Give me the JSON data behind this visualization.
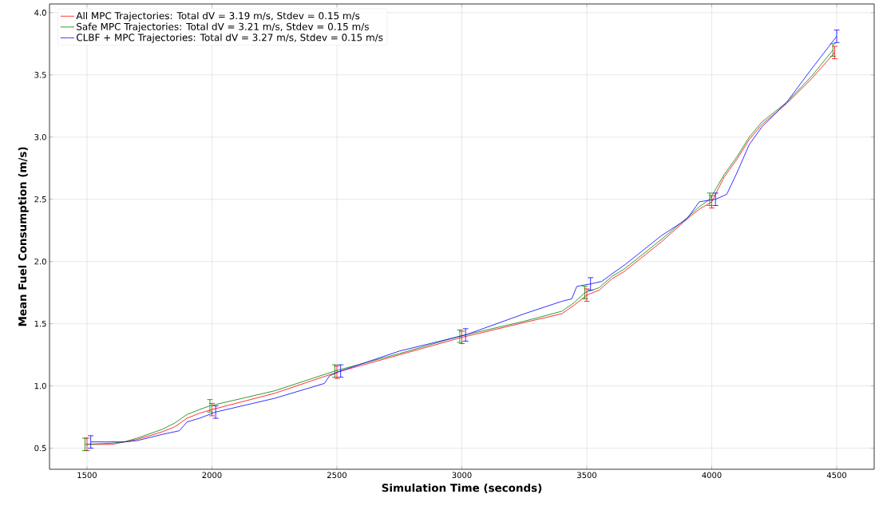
{
  "chart_data": {
    "type": "line",
    "xlabel": "Simulation Time (seconds)",
    "ylabel": "Mean Fuel Consumption (m/s)",
    "xlim": [
      1350,
      4650
    ],
    "ylim": [
      0.33,
      4.07
    ],
    "xticks": [
      1500,
      2000,
      2500,
      3000,
      3500,
      4000,
      4500
    ],
    "yticks": [
      {
        "value": 0.5,
        "label": "0.5"
      },
      {
        "value": 1.0,
        "label": "1.0"
      },
      {
        "value": 1.5,
        "label": "1.5"
      },
      {
        "value": 2.0,
        "label": "2.0"
      },
      {
        "value": 2.5,
        "label": "2.5"
      },
      {
        "value": 3.0,
        "label": "3.0"
      },
      {
        "value": 3.5,
        "label": "3.5"
      },
      {
        "value": 4.0,
        "label": "4.0"
      }
    ],
    "grid": true,
    "legend": "top left",
    "line_style": "solid",
    "marker": "none",
    "series": [
      {
        "name": "All MPC Trajectories: Total dV = 3.19 m/s, Stdev = 0.15 m/s",
        "color": "#ff0000",
        "x": [
          1500,
          1600,
          1650,
          1700,
          1800,
          1850,
          1900,
          1950,
          2000,
          2250,
          2500,
          2750,
          3000,
          3250,
          3400,
          3450,
          3500,
          3550,
          3600,
          3650,
          3800,
          3900,
          3950,
          4000,
          4050,
          4100,
          4150,
          4200,
          4300,
          4400,
          4492
        ],
        "values": [
          0.53,
          0.53,
          0.55,
          0.57,
          0.63,
          0.67,
          0.74,
          0.78,
          0.81,
          0.94,
          1.11,
          1.25,
          1.39,
          1.51,
          1.58,
          1.65,
          1.73,
          1.77,
          1.86,
          1.92,
          2.16,
          2.34,
          2.42,
          2.48,
          2.68,
          2.82,
          2.98,
          3.1,
          3.27,
          3.47,
          3.68
        ],
        "errors": [
          0.05,
          null,
          null,
          null,
          null,
          null,
          null,
          null,
          0.05,
          null,
          0.05,
          null,
          0.05,
          null,
          null,
          null,
          0.05,
          null,
          null,
          null,
          null,
          null,
          null,
          0.05,
          null,
          null,
          null,
          null,
          null,
          null,
          0.05
        ]
      },
      {
        "name": "Safe MPC Trajectories: Total dV = 3.21 m/s, Stdev = 0.15 m/s",
        "color": "#008000",
        "x": [
          1492,
          1600,
          1650,
          1700,
          1800,
          1850,
          1900,
          1950,
          1992,
          2250,
          2492,
          2750,
          2992,
          3250,
          3400,
          3450,
          3492,
          3550,
          3600,
          3650,
          3800,
          3900,
          3950,
          3992,
          4050,
          4100,
          4150,
          4200,
          4300,
          4400,
          4485
        ],
        "values": [
          0.53,
          0.54,
          0.55,
          0.58,
          0.65,
          0.7,
          0.77,
          0.81,
          0.84,
          0.96,
          1.12,
          1.26,
          1.4,
          1.52,
          1.6,
          1.67,
          1.75,
          1.79,
          1.88,
          1.94,
          2.18,
          2.35,
          2.44,
          2.5,
          2.7,
          2.84,
          3.0,
          3.12,
          3.28,
          3.49,
          3.7
        ],
        "errors": [
          0.05,
          null,
          null,
          null,
          null,
          null,
          null,
          null,
          0.05,
          null,
          0.05,
          null,
          0.05,
          null,
          null,
          null,
          0.05,
          null,
          null,
          null,
          null,
          null,
          null,
          0.05,
          null,
          null,
          null,
          null,
          null,
          null,
          0.05
        ]
      },
      {
        "name": "CLBF + MPC  Trajectories: Total dV = 3.27 m/s, Stdev = 0.15 m/s",
        "color": "#0000ff",
        "x": [
          1515,
          1650,
          1700,
          1800,
          1870,
          1900,
          1950,
          2015,
          2250,
          2450,
          2470,
          2515,
          2750,
          3015,
          3250,
          3400,
          3440,
          3460,
          3515,
          3560,
          3600,
          3650,
          3800,
          3900,
          3950,
          4015,
          4060,
          4100,
          4150,
          4200,
          4300,
          4400,
          4500
        ],
        "values": [
          0.55,
          0.55,
          0.56,
          0.61,
          0.64,
          0.71,
          0.74,
          0.79,
          0.9,
          1.02,
          1.08,
          1.12,
          1.28,
          1.41,
          1.58,
          1.68,
          1.7,
          1.8,
          1.82,
          1.84,
          1.9,
          1.97,
          2.21,
          2.34,
          2.48,
          2.5,
          2.54,
          2.71,
          2.94,
          3.08,
          3.28,
          3.55,
          3.81
        ],
        "errors": [
          0.05,
          null,
          null,
          null,
          null,
          null,
          null,
          0.05,
          null,
          null,
          null,
          0.05,
          null,
          0.05,
          null,
          null,
          null,
          null,
          0.05,
          null,
          null,
          null,
          null,
          null,
          null,
          0.05,
          null,
          null,
          null,
          null,
          null,
          null,
          0.05
        ]
      }
    ]
  }
}
